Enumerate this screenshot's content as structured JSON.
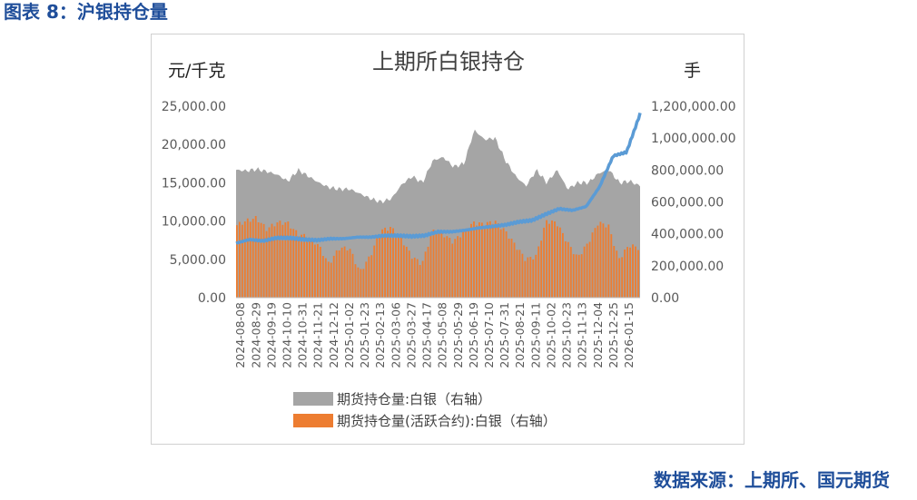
{
  "figure_title": "图表 8：沪银持仓量",
  "source": "数据来源：上期所、国元期货",
  "chart_data": {
    "type": "area",
    "title": "上期所白银持仓",
    "left_unit": "元/千克",
    "right_unit": "手",
    "left_axis": {
      "min": 0,
      "max": 25000,
      "ticks": [
        "0.00",
        "5,000.00",
        "10,000.00",
        "15,000.00",
        "20,000.00",
        "25,000.00"
      ]
    },
    "right_axis": {
      "min": 0,
      "max": 1200000,
      "ticks": [
        "0.00",
        "200,000.00",
        "400,000.00",
        "600,000.00",
        "800,000.00",
        "1,000,000.00",
        "1,200,000.00"
      ]
    },
    "x_tick_labels": [
      "2024-08-08",
      "2024-08-29",
      "2024-09-19",
      "2024-10-10",
      "2024-10-31",
      "2024-11-21",
      "2024-12-12",
      "2025-01-02",
      "2025-01-23",
      "2025-02-13",
      "2025-03-06",
      "2025-03-27",
      "2025-04-17",
      "2025-05-08",
      "2025-05-29",
      "2025-06-19",
      "2025-07-10",
      "2025-07-31",
      "2025-08-21",
      "2025-09-11",
      "2025-10-02",
      "2025-10-23",
      "2025-11-13",
      "2025-12-04",
      "2025-12-25",
      "2026-01-15"
    ],
    "legend": [
      "期货持仓量:白银（右轴）",
      "期货持仓量(活跃合约):白银（右轴）"
    ],
    "series": [
      {
        "name": "期货持仓量:白银（右轴）",
        "axis": "right",
        "color": "#a5a5a5",
        "points": [
          [
            0,
            800000
          ],
          [
            1,
            795000
          ],
          [
            2,
            805000
          ],
          [
            3,
            790000
          ],
          [
            4,
            770000
          ],
          [
            5,
            730000
          ],
          [
            6,
            800000
          ],
          [
            7,
            760000
          ],
          [
            8,
            720000
          ],
          [
            9,
            690000
          ],
          [
            10,
            680000
          ],
          [
            11,
            680000
          ],
          [
            12,
            650000
          ],
          [
            13,
            620000
          ],
          [
            14,
            600000
          ],
          [
            15,
            620000
          ],
          [
            16,
            710000
          ],
          [
            17,
            760000
          ],
          [
            18,
            720000
          ],
          [
            19,
            860000
          ],
          [
            20,
            880000
          ],
          [
            21,
            820000
          ],
          [
            22,
            840000
          ],
          [
            23,
            1050000
          ],
          [
            24,
            990000
          ],
          [
            25,
            1000000
          ],
          [
            26,
            860000
          ],
          [
            27,
            760000
          ],
          [
            28,
            700000
          ],
          [
            29,
            800000
          ],
          [
            30,
            720000
          ],
          [
            31,
            800000
          ],
          [
            32,
            680000
          ],
          [
            33,
            720000
          ],
          [
            34,
            720000
          ],
          [
            35,
            780000
          ],
          [
            36,
            800000
          ],
          [
            37,
            720000
          ],
          [
            38,
            730000
          ],
          [
            39,
            700000
          ]
        ]
      },
      {
        "name": "期货持仓量(活跃合约):白银（右轴）",
        "axis": "right",
        "color": "#ed7d31",
        "points": [
          [
            0,
            450000
          ],
          [
            1,
            480000
          ],
          [
            2,
            500000
          ],
          [
            3,
            430000
          ],
          [
            4,
            470000
          ],
          [
            5,
            470000
          ],
          [
            6,
            400000
          ],
          [
            7,
            380000
          ],
          [
            8,
            330000
          ],
          [
            9,
            210000
          ],
          [
            10,
            310000
          ],
          [
            11,
            310000
          ],
          [
            12,
            160000
          ],
          [
            13,
            260000
          ],
          [
            14,
            420000
          ],
          [
            15,
            440000
          ],
          [
            16,
            370000
          ],
          [
            17,
            260000
          ],
          [
            18,
            210000
          ],
          [
            19,
            420000
          ],
          [
            20,
            400000
          ],
          [
            21,
            350000
          ],
          [
            22,
            410000
          ],
          [
            23,
            470000
          ],
          [
            24,
            460000
          ],
          [
            25,
            480000
          ],
          [
            26,
            420000
          ],
          [
            27,
            330000
          ],
          [
            28,
            240000
          ],
          [
            29,
            260000
          ],
          [
            30,
            480000
          ],
          [
            31,
            470000
          ],
          [
            32,
            350000
          ],
          [
            33,
            250000
          ],
          [
            34,
            340000
          ],
          [
            35,
            470000
          ],
          [
            36,
            450000
          ],
          [
            37,
            240000
          ],
          [
            38,
            330000
          ],
          [
            39,
            310000
          ]
        ]
      },
      {
        "name": "",
        "axis": "left",
        "color": "#5b9bd5",
        "points": [
          [
            0,
            7100
          ],
          [
            1,
            7600
          ],
          [
            2,
            7400
          ],
          [
            3,
            7800
          ],
          [
            4,
            7800
          ],
          [
            5,
            7600
          ],
          [
            6,
            7500
          ],
          [
            7,
            7700
          ],
          [
            8,
            7700
          ],
          [
            9,
            7900
          ],
          [
            10,
            7900
          ],
          [
            11,
            8100
          ],
          [
            12,
            8100
          ],
          [
            13,
            8000
          ],
          [
            14,
            8100
          ],
          [
            15,
            8600
          ],
          [
            16,
            8600
          ],
          [
            17,
            8800
          ],
          [
            18,
            9100
          ],
          [
            19,
            9300
          ],
          [
            20,
            9500
          ],
          [
            21,
            9900
          ],
          [
            22,
            10100
          ],
          [
            23,
            10900
          ],
          [
            24,
            11600
          ],
          [
            25,
            11400
          ],
          [
            26,
            11900
          ],
          [
            27,
            14500
          ],
          [
            28,
            18500
          ],
          [
            29,
            19000
          ],
          [
            30,
            24000
          ]
        ]
      }
    ]
  }
}
